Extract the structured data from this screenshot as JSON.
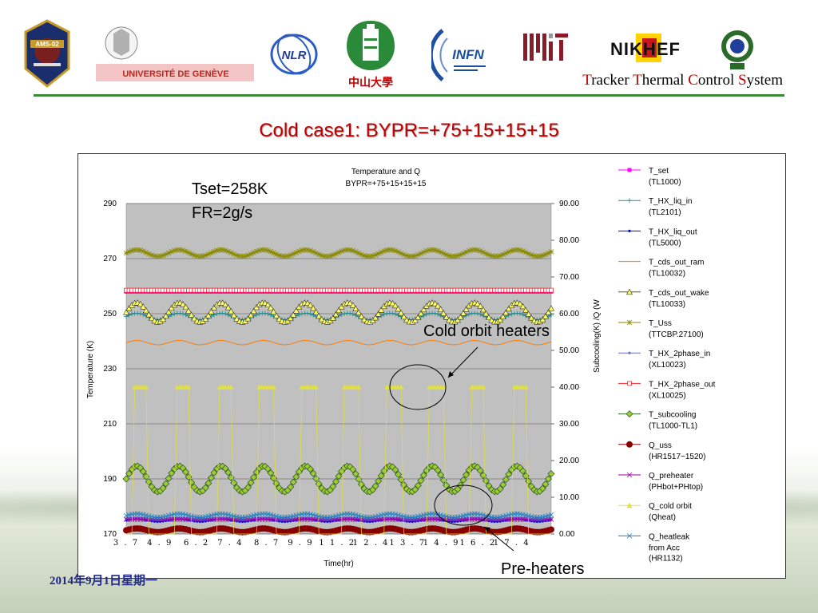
{
  "header": {
    "logos": [
      {
        "name": "ams-02-logo",
        "label": "AMS-02"
      },
      {
        "name": "universite-de-geneve-logo",
        "label": "UNIVERSITÉ DE GENÈVE"
      },
      {
        "name": "nlr-logo",
        "label": "NLR"
      },
      {
        "name": "sun-yat-sen-university-logo",
        "label": "中山大學"
      },
      {
        "name": "infn-logo",
        "label": "INFN"
      },
      {
        "name": "mit-logo",
        "label": "MIT"
      },
      {
        "name": "nikhef-logo",
        "label": "NIKHEF"
      },
      {
        "name": "seal-logo",
        "label": ""
      }
    ],
    "system_title": {
      "parts": [
        {
          "cap": "T",
          "rest": "racker "
        },
        {
          "cap": "T",
          "rest": "hermal "
        },
        {
          "cap": "C",
          "rest": "ontrol "
        },
        {
          "cap": "S",
          "rest": "ystem"
        }
      ]
    }
  },
  "slide": {
    "title": "Cold case1: BYPR=+75+15+15+15",
    "date": "2014年9月1日星期一",
    "annotations": {
      "tset": "Tset=258K",
      "fr": "FR=2g/s",
      "cold_orbit_heaters": "Cold orbit heaters",
      "pre_heaters": "Pre-heaters"
    }
  },
  "colors": {
    "title": "#c00000",
    "plot_bg": "#c0c0c0",
    "header_rule": "#3a8a3a"
  },
  "chart_data": {
    "type": "line",
    "title": "Temperature and Q",
    "subtitle": "BYPR=+75+15+15+15",
    "xlabel": "Time(hr)",
    "ylabel": "Temperature (K)",
    "y2label": "Subcooling(K) /Q (W",
    "xlim": [
      3.7,
      18.8
    ],
    "ylim": [
      170,
      290
    ],
    "y2lim": [
      0,
      90
    ],
    "x_ticks": [
      "3.7",
      "4.9",
      "6.2",
      "7.4",
      "8.7",
      "9.9",
      "11.2",
      "12.4",
      "13.7",
      "14.9",
      "16.2",
      "17.4"
    ],
    "y_ticks": [
      "170",
      "190",
      "210",
      "230",
      "250",
      "270",
      "290"
    ],
    "y2_ticks": [
      "0.00",
      "10.00",
      "20.00",
      "30.00",
      "40.00",
      "50.00",
      "60.00",
      "70.00",
      "80.00",
      "90.00"
    ],
    "grid": true,
    "legend_position": "right",
    "series": [
      {
        "name": "T_set",
        "sub": "(TL1000)",
        "axis": "left",
        "color": "#ff00ff",
        "marker": "square",
        "base": 258,
        "amp": 0,
        "period": 1.5
      },
      {
        "name": "T_HX_liq_in",
        "sub": "(TL2101)",
        "axis": "left",
        "color": "#2a8a8a",
        "marker": "plus",
        "base": 249,
        "amp": 1.2,
        "period": 1.5
      },
      {
        "name": "T_HX_liq_out",
        "sub": "(TL5000)",
        "axis": "left",
        "color": "#0000ee",
        "marker": "dot",
        "base": 175,
        "amp": 0.5,
        "period": 1.5
      },
      {
        "name": "T_cds_out_ram",
        "sub": "(TL10032)",
        "axis": "left",
        "color": "#ff7a00",
        "marker": "none",
        "base": 239.5,
        "amp": 0.8,
        "period": 1.5
      },
      {
        "name": "T_cds_out_wake",
        "sub": "(TL10033)",
        "axis": "left",
        "color": "#5a5a00",
        "marker": "triangle",
        "base": 250.5,
        "amp": 3.5,
        "period": 1.5
      },
      {
        "name": "T_Uss",
        "sub": "(TTCBP.27100)",
        "axis": "left",
        "color": "#8a8a00",
        "marker": "star",
        "base": 272,
        "amp": 1.2,
        "period": 1.5
      },
      {
        "name": "T_HX_2phase_in",
        "sub": "(XL10023)",
        "axis": "left",
        "color": "#6a6ad0",
        "marker": "dot",
        "base": 175.5,
        "amp": 0.3,
        "period": 1.5
      },
      {
        "name": "T_HX_2phase_out",
        "sub": "(XL10025)",
        "axis": "left",
        "color": "#ff2020",
        "marker": "square-open",
        "base": 258.5,
        "amp": 0,
        "period": 1.5
      },
      {
        "name": "T_subcooling",
        "sub": "(TL1000-TL1)",
        "axis": "right",
        "color": "#2a6a2a",
        "marker": "diamond",
        "base": 15,
        "amp": 3.5,
        "period": 1.5
      },
      {
        "name": "Q_uss",
        "sub": "(HR1517~1520)",
        "axis": "right",
        "color": "#8a0000",
        "marker": "dot-big",
        "base": 1,
        "amp": 0.5,
        "period": 1.5
      },
      {
        "name": "Q_preheater",
        "sub": "(PHbot+PHtop)",
        "axis": "right",
        "color": "#a000a0",
        "marker": "x",
        "base": 4,
        "amp": 0,
        "period": 1.5
      },
      {
        "name": "Q_cold orbit",
        "sub": "(Qheat)",
        "axis": "right",
        "color": "#e0e040",
        "marker": "triangle-filled",
        "base": 0,
        "amp": 0,
        "period": 1.5,
        "heater_on": 40
      },
      {
        "name": "Q_heatleak",
        "sub": "from Acc\n(HR1132)",
        "axis": "right",
        "color": "#2080c0",
        "marker": "x",
        "base": 5,
        "amp": 0.5,
        "period": 1.5
      }
    ]
  }
}
